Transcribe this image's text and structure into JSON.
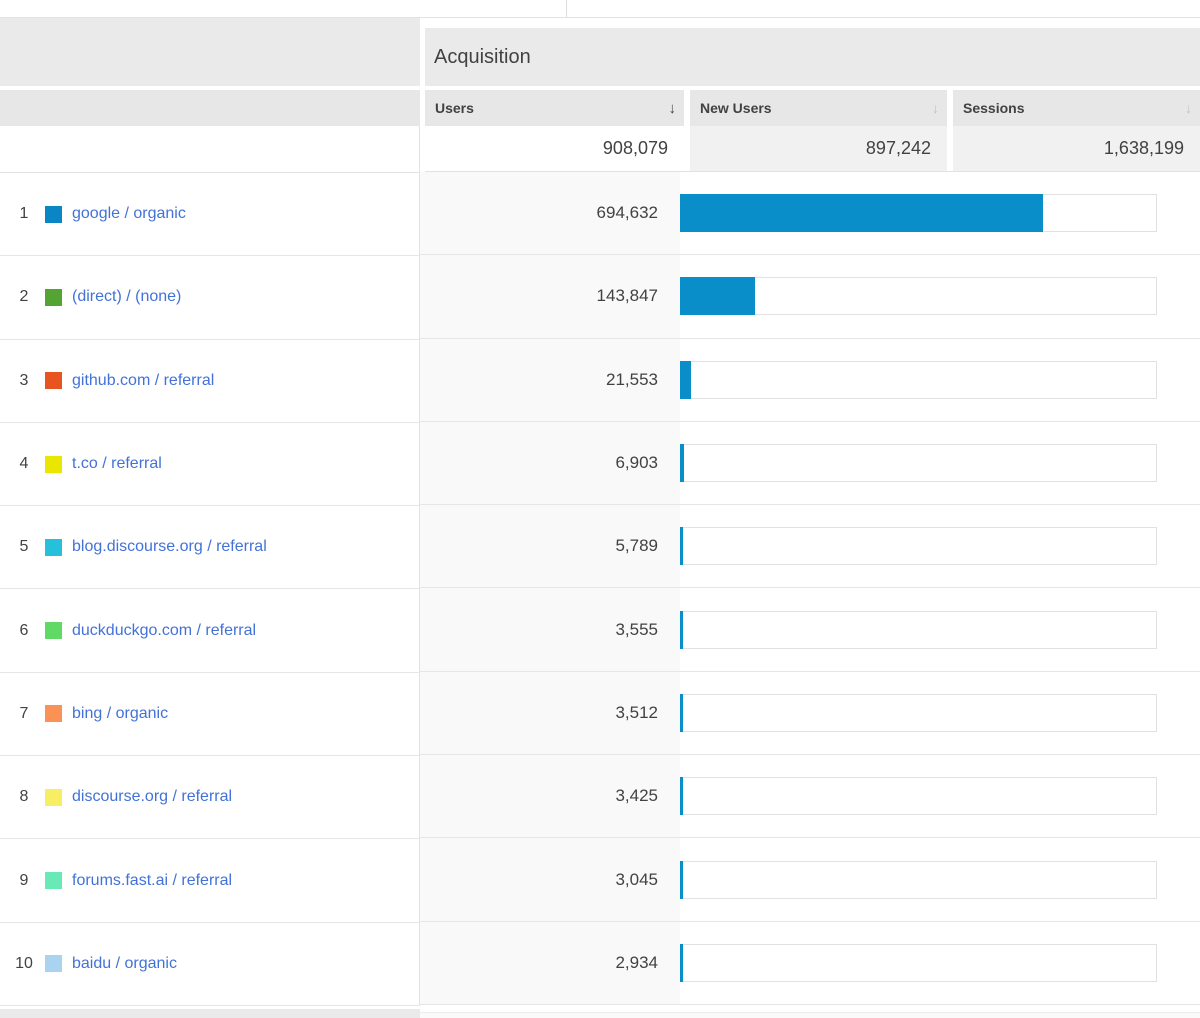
{
  "colors": {
    "bar_fill": "#0a8ec9",
    "link": "#4272d8"
  },
  "acquisition_panel": {
    "title": "Acquisition",
    "columns": [
      {
        "label": "Users",
        "sort_state": "descending-active"
      },
      {
        "label": "New Users",
        "sort_state": "inactive"
      },
      {
        "label": "Sessions",
        "sort_state": "inactive"
      }
    ],
    "totals": {
      "users": "908,079",
      "new_users": "897,242",
      "sessions": "1,638,199"
    },
    "users_total_value": 908079
  },
  "rows": [
    {
      "rank": "1",
      "source": "google / organic",
      "swatch_color": "#0a86c4",
      "users": "694,632",
      "users_value": 694632
    },
    {
      "rank": "2",
      "source": "(direct) / (none)",
      "swatch_color": "#53a433",
      "users": "143,847",
      "users_value": 143847
    },
    {
      "rank": "3",
      "source": "github.com / referral",
      "swatch_color": "#e75420",
      "users": "21,553",
      "users_value": 21553
    },
    {
      "rank": "4",
      "source": "t.co / referral",
      "swatch_color": "#eae600",
      "users": "6,903",
      "users_value": 6903
    },
    {
      "rank": "5",
      "source": "blog.discourse.org / referral",
      "swatch_color": "#27c0da",
      "users": "5,789",
      "users_value": 5789
    },
    {
      "rank": "6",
      "source": "duckduckgo.com / referral",
      "swatch_color": "#61d965",
      "users": "3,555",
      "users_value": 3555
    },
    {
      "rank": "7",
      "source": "bing / organic",
      "swatch_color": "#fb9155",
      "users": "3,512",
      "users_value": 3512
    },
    {
      "rank": "8",
      "source": "discourse.org / referral",
      "swatch_color": "#f9ee63",
      "users": "3,425",
      "users_value": 3425
    },
    {
      "rank": "9",
      "source": "forums.fast.ai / referral",
      "swatch_color": "#69e9b6",
      "users": "3,045",
      "users_value": 3045
    },
    {
      "rank": "10",
      "source": "baidu / organic",
      "swatch_color": "#a9d3f0",
      "users": "2,934",
      "users_value": 2934
    }
  ]
}
